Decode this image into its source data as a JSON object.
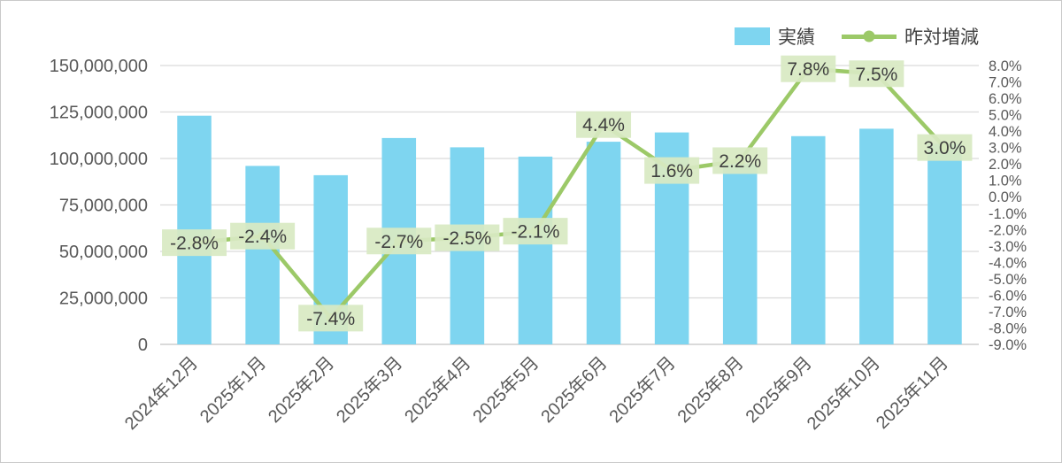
{
  "chart_data": {
    "type": "combo-bar-line",
    "title": "",
    "categories": [
      "2024年12月",
      "2025年1月",
      "2025年2月",
      "2025年3月",
      "2025年4月",
      "2025年5月",
      "2025年6月",
      "2025年7月",
      "2025年8月",
      "2025年9月",
      "2025年10月",
      "2025年11月"
    ],
    "series": [
      {
        "name": "実績",
        "type": "bar",
        "axis": "left",
        "color": "#7ED5F0",
        "values": [
          123000000,
          96000000,
          91000000,
          111000000,
          106000000,
          101000000,
          109000000,
          114000000,
          97000000,
          112000000,
          116000000,
          108000000
        ]
      },
      {
        "name": "昨対増減",
        "type": "line",
        "axis": "right",
        "color": "#9CC968",
        "values": [
          -2.8,
          -2.4,
          -7.4,
          -2.7,
          -2.5,
          -2.1,
          4.4,
          1.6,
          2.2,
          7.8,
          7.5,
          3.0
        ],
        "labels": [
          "-2.8%",
          "-2.4%",
          "-7.4%",
          "-2.7%",
          "-2.5%",
          "-2.1%",
          "4.4%",
          "1.6%",
          "2.2%",
          "7.8%",
          "7.5%",
          "3.0%"
        ]
      }
    ],
    "left_axis": {
      "min": 0,
      "max": 150000000,
      "tick_labels": [
        "150,000,000",
        "125,000,000",
        "100,000,000",
        "75,000,000",
        "50,000,000",
        "25,000,000",
        "0"
      ]
    },
    "right_axis": {
      "min": -9,
      "max": 8,
      "tick_labels": [
        "8.0%",
        "7.0%",
        "6.0%",
        "5.0%",
        "4.0%",
        "3.0%",
        "2.0%",
        "1.0%",
        "0.0%",
        "-1.0%",
        "-2.0%",
        "-3.0%",
        "-4.0%",
        "-5.0%",
        "-6.0%",
        "-7.0%",
        "-8.0%",
        "-9.0%"
      ]
    },
    "grid": true,
    "legend_position": "top-right",
    "colors": {
      "grid": "#DADADA",
      "baseline": "#C3C3C3",
      "axis_text": "#595959",
      "label_text": "#3F3F3F",
      "label_box": "#D8E9C3"
    }
  }
}
